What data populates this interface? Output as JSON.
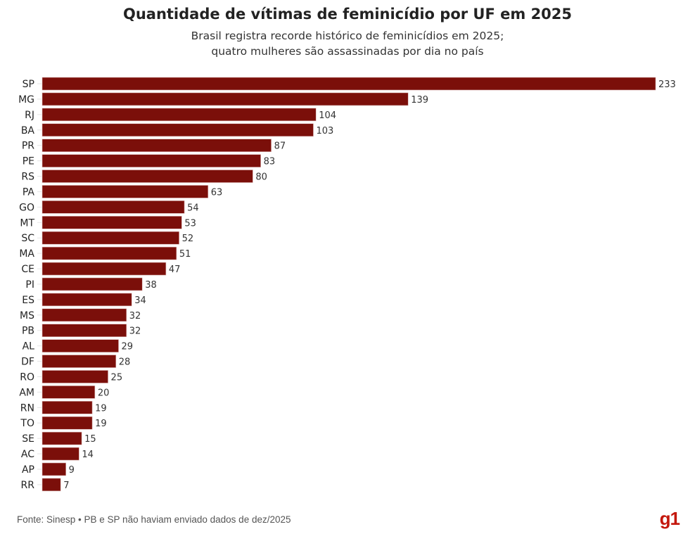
{
  "chart_data": {
    "type": "bar",
    "orientation": "horizontal",
    "title": "Quantidade de vítimas de feminicídio por UF em 2025",
    "subtitle": [
      "Brasil registra recorde histórico de feminicídios em 2025;",
      "quatro mulheres são assassinadas por dia no país"
    ],
    "xlabel": "",
    "ylabel": "",
    "categories": [
      "SP",
      "MG",
      "RJ",
      "BA",
      "PR",
      "PE",
      "RS",
      "PA",
      "GO",
      "MT",
      "SC",
      "MA",
      "CE",
      "PI",
      "ES",
      "MS",
      "PB",
      "AL",
      "DF",
      "RO",
      "AM",
      "RN",
      "TO",
      "SE",
      "AC",
      "AP",
      "RR"
    ],
    "values": [
      233,
      139,
      104,
      103,
      87,
      83,
      80,
      63,
      54,
      53,
      52,
      51,
      47,
      38,
      34,
      32,
      32,
      29,
      28,
      25,
      20,
      19,
      19,
      15,
      14,
      9,
      7
    ],
    "xlim": [
      0,
      233
    ],
    "bar_color": "#7b0f0a",
    "grid": false,
    "legend": "none"
  },
  "footer": {
    "source": "Fonte: Sinesp • PB e SP não haviam enviado dados de dez/2025"
  },
  "branding": {
    "logo_text": "g1",
    "logo_color": "#c4170c"
  }
}
